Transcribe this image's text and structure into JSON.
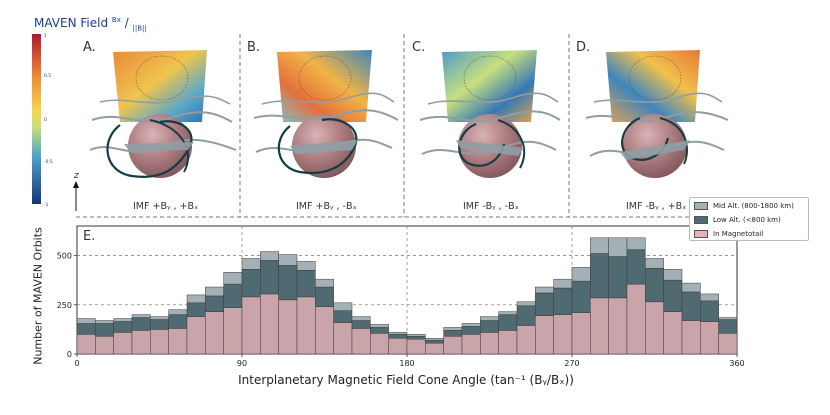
{
  "colorbar": {
    "title_main": "MAVEN Field ",
    "title_sup": "Bx",
    "title_slash": " / ",
    "title_sub": "||B||",
    "ticks": [
      "1",
      "0.5",
      "0",
      "-0.5",
      "-1"
    ],
    "axis_label": "Z"
  },
  "panels": [
    {
      "letter": "A.",
      "label": "IMF +Bᵧ , +Bₓ"
    },
    {
      "letter": "B.",
      "label": "IMF +Bᵧ , -Bₓ"
    },
    {
      "letter": "C.",
      "label": "IMF -Bᵧ , -Bₓ"
    },
    {
      "letter": "D.",
      "label": "IMF -Bᵧ , +Bₓ"
    }
  ],
  "legend": {
    "mid": "Mid Alt. (800-1800 km)",
    "low": "Low Alt. (<800 km)",
    "tail": "In Magnetotail"
  },
  "colors": {
    "mid": "#a3b0b6",
    "low": "#4f6a70",
    "tail": "#c9a4a8",
    "sphere": "#a07377",
    "field_line_dark": "#163c44",
    "field_line_light": "#8f9ea3"
  },
  "chart_data": {
    "type": "bar",
    "stacked": true,
    "panel_letter": "E.",
    "xlabel": "Interplanetary Magnetic Field Cone Angle (tan⁻¹ (Bᵧ/Bₓ))",
    "ylabel": "Number of MAVEN Orbits",
    "xlim": [
      0,
      360
    ],
    "ylim": [
      0,
      650
    ],
    "xticks": [
      0,
      90,
      180,
      270,
      360
    ],
    "yticks": [
      0,
      250,
      500
    ],
    "bin_width": 10,
    "bin_starts": [
      0,
      10,
      20,
      30,
      40,
      50,
      60,
      70,
      80,
      90,
      100,
      110,
      120,
      130,
      140,
      150,
      160,
      170,
      180,
      190,
      200,
      210,
      220,
      230,
      240,
      250,
      260,
      270,
      280,
      290,
      300,
      310,
      320,
      330,
      340,
      350
    ],
    "series": [
      {
        "name": "In Magnetotail",
        "values": [
          100,
          90,
          110,
          120,
          125,
          130,
          190,
          215,
          235,
          290,
          305,
          275,
          290,
          240,
          160,
          130,
          105,
          80,
          75,
          55,
          90,
          100,
          110,
          120,
          145,
          195,
          200,
          210,
          285,
          285,
          355,
          265,
          215,
          170,
          165,
          105
        ]
      },
      {
        "name": "Low Alt. (<800 km)",
        "values": [
          55,
          65,
          55,
          65,
          50,
          70,
          70,
          80,
          120,
          140,
          170,
          175,
          135,
          100,
          60,
          40,
          30,
          20,
          15,
          15,
          30,
          40,
          60,
          80,
          100,
          115,
          135,
          160,
          225,
          210,
          175,
          170,
          160,
          145,
          105,
          70
        ]
      },
      {
        "name": "Mid Alt. (800-1800 km)",
        "values": [
          25,
          15,
          15,
          15,
          15,
          25,
          40,
          45,
          60,
          55,
          45,
          55,
          45,
          40,
          40,
          20,
          15,
          10,
          10,
          10,
          15,
          15,
          20,
          15,
          20,
          30,
          45,
          70,
          80,
          95,
          60,
          50,
          55,
          45,
          35,
          10
        ]
      }
    ]
  }
}
